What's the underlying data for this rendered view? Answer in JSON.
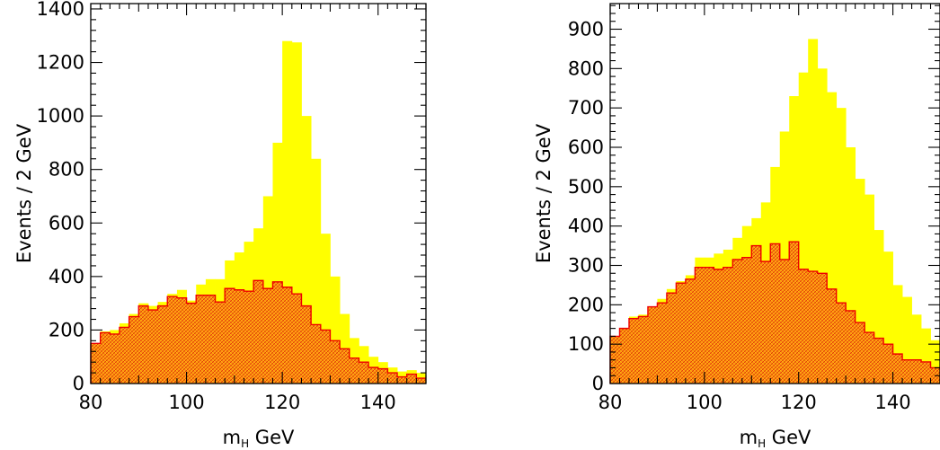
{
  "chart_data": [
    {
      "type": "histogram",
      "xlabel": "m",
      "xlabel_sub": "H",
      "xlabel_unit": " GeV",
      "ylabel": "Events / 2 GeV",
      "xlim": [
        80,
        150
      ],
      "ylim": [
        0,
        1420
      ],
      "xticks": [
        80,
        100,
        120,
        140
      ],
      "yticks": [
        0,
        200,
        400,
        600,
        800,
        1000,
        1200,
        1400
      ],
      "bin_width": 2,
      "bin_start": 80,
      "grid": false,
      "series": [
        {
          "role": "total",
          "color": "#ffff00",
          "values": [
            140,
            195,
            200,
            225,
            260,
            300,
            290,
            305,
            335,
            350,
            310,
            370,
            390,
            390,
            460,
            490,
            530,
            580,
            700,
            900,
            1280,
            1275,
            1000,
            840,
            560,
            400,
            260,
            170,
            140,
            100,
            80,
            60,
            45,
            50,
            40
          ]
        },
        {
          "role": "shaded",
          "color": "#ff7722",
          "edge": "#ee0000",
          "values": [
            150,
            190,
            185,
            210,
            250,
            290,
            275,
            290,
            325,
            320,
            300,
            330,
            330,
            305,
            355,
            350,
            345,
            385,
            355,
            380,
            360,
            335,
            290,
            220,
            200,
            160,
            130,
            95,
            80,
            60,
            55,
            40,
            25,
            35,
            20
          ]
        }
      ]
    },
    {
      "type": "histogram",
      "xlabel": "m",
      "xlabel_sub": "H",
      "xlabel_unit": " GeV",
      "ylabel": "Events / 2 GeV",
      "xlim": [
        80,
        150
      ],
      "ylim": [
        0,
        965
      ],
      "xticks": [
        80,
        100,
        120,
        140
      ],
      "yticks": [
        0,
        100,
        200,
        300,
        400,
        500,
        600,
        700,
        800,
        900
      ],
      "bin_width": 2,
      "bin_start": 80,
      "grid": false,
      "series": [
        {
          "role": "total",
          "color": "#ffff00",
          "values": [
            120,
            140,
            170,
            175,
            195,
            215,
            240,
            260,
            275,
            320,
            320,
            330,
            340,
            370,
            400,
            420,
            460,
            550,
            640,
            730,
            790,
            875,
            800,
            740,
            700,
            600,
            520,
            480,
            390,
            335,
            250,
            220,
            175,
            140,
            110
          ]
        },
        {
          "role": "shaded",
          "color": "#ff7722",
          "edge": "#ee0000",
          "values": [
            120,
            140,
            165,
            170,
            195,
            205,
            230,
            255,
            265,
            295,
            295,
            290,
            295,
            315,
            320,
            350,
            310,
            355,
            315,
            360,
            290,
            285,
            280,
            240,
            205,
            185,
            155,
            130,
            115,
            100,
            75,
            60,
            60,
            55,
            40
          ]
        }
      ]
    }
  ]
}
